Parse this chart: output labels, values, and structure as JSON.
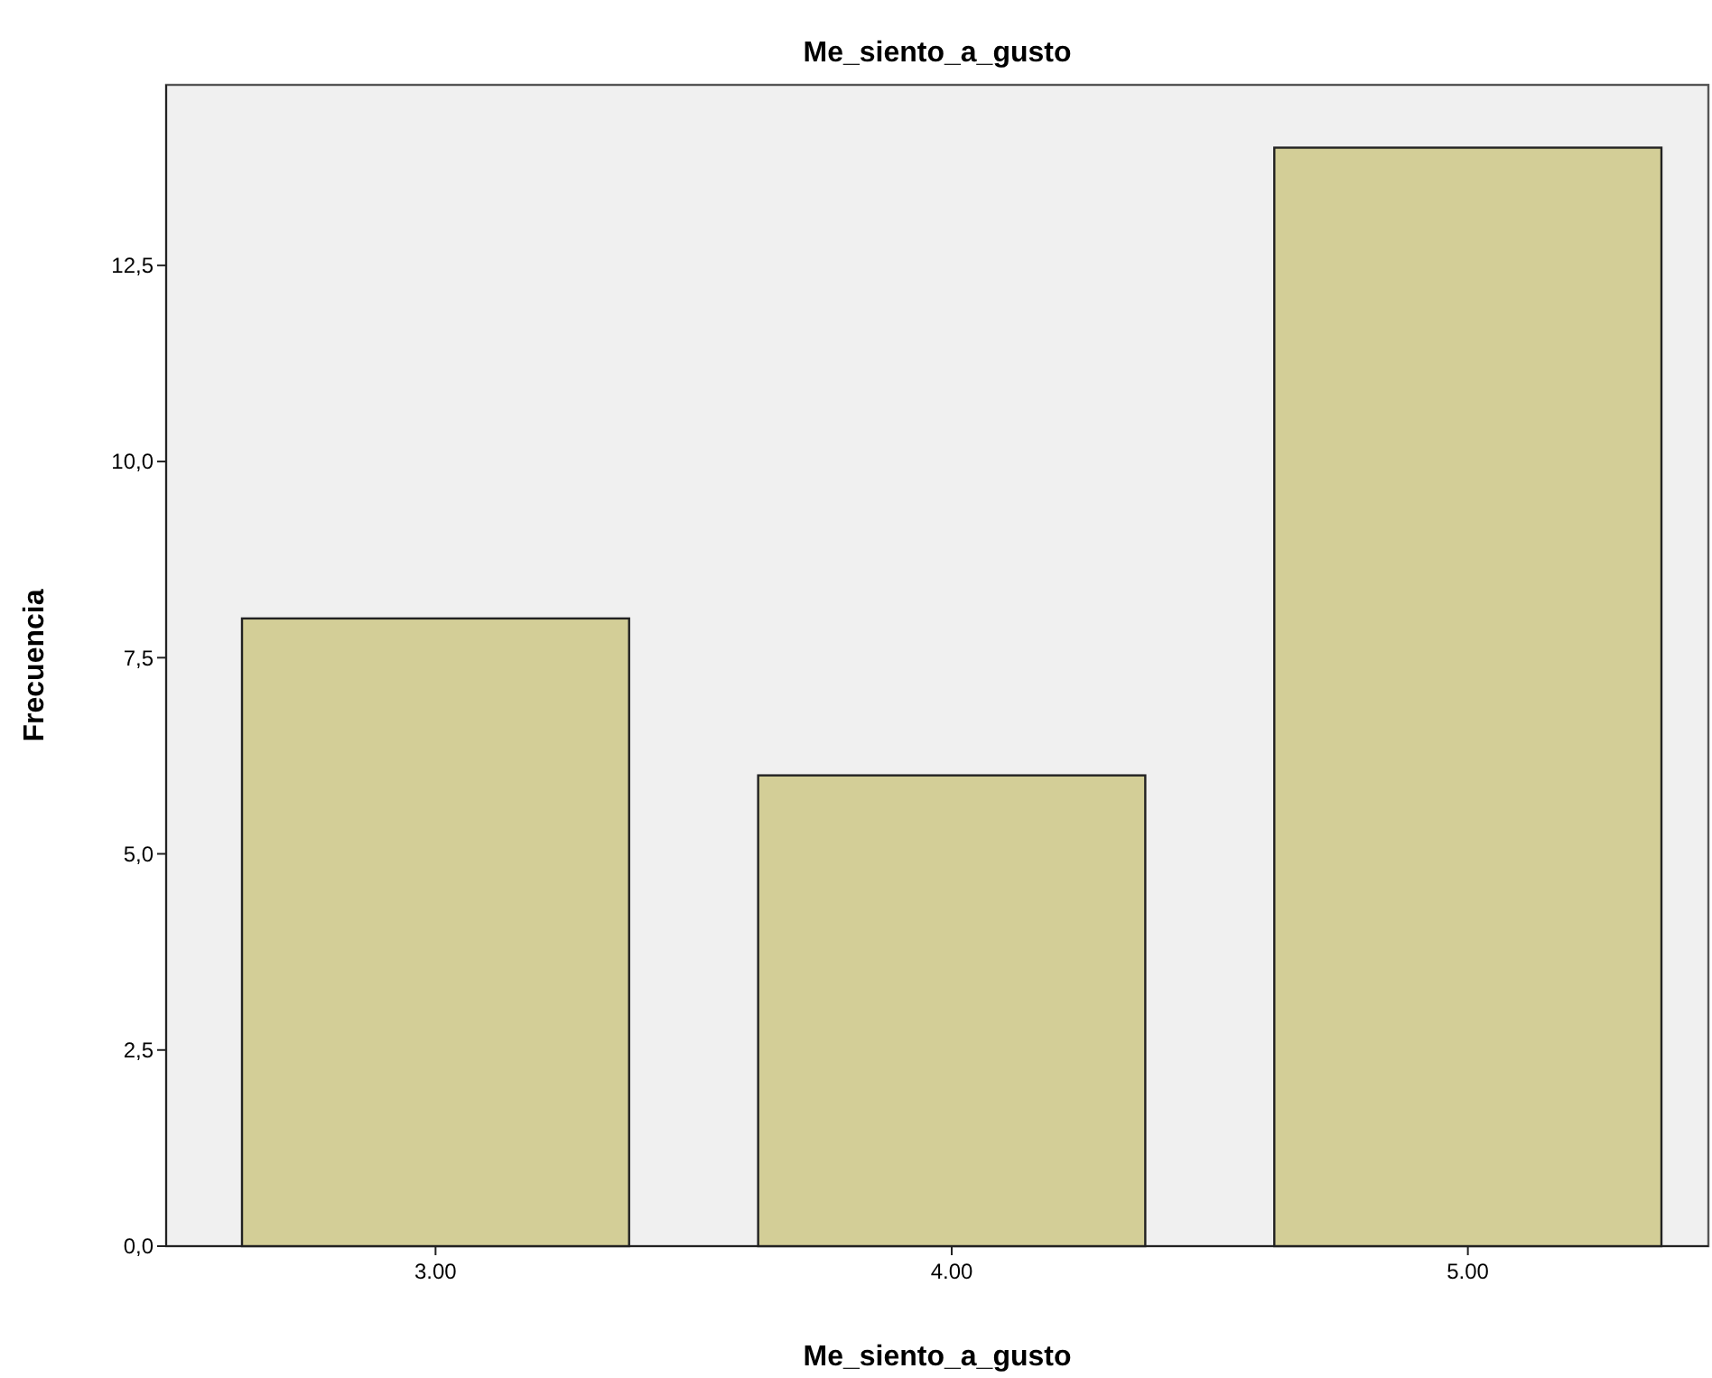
{
  "chart_data": {
    "type": "bar",
    "title": "Me_siento_a_gusto",
    "xlabel": "Me_siento_a_gusto",
    "ylabel": "Frecuencia",
    "categories": [
      "3.00",
      "4.00",
      "5.00"
    ],
    "values": [
      8,
      6,
      14
    ],
    "color": "#d3ce97",
    "ylim": [
      0,
      14.8
    ],
    "yticks": [
      {
        "value": 0,
        "label": "0,0"
      },
      {
        "value": 2.5,
        "label": "2,5"
      },
      {
        "value": 5,
        "label": "5,0"
      },
      {
        "value": 7.5,
        "label": "7,5"
      },
      {
        "value": 10,
        "label": "10,0"
      },
      {
        "value": 12.5,
        "label": "12,5"
      }
    ],
    "grid": false
  }
}
